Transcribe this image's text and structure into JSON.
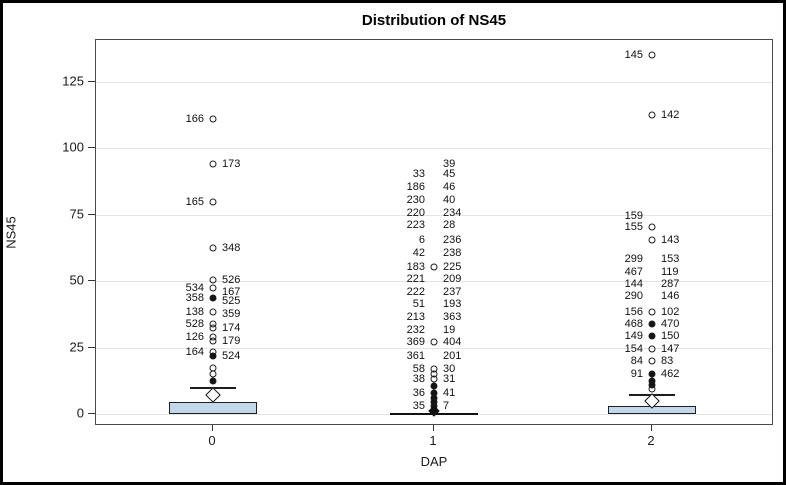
{
  "chart_data": {
    "type": "boxplot",
    "title": "Distribution of NS45",
    "xlabel": "DAP",
    "ylabel": "NS45",
    "ylim": [
      -3,
      142
    ],
    "grid": "horizontal",
    "y_ticks": [
      0,
      25,
      50,
      75,
      100,
      125
    ],
    "categories": [
      "0",
      "1",
      "2"
    ],
    "groups": [
      {
        "category": "0",
        "box": {
          "style": "box",
          "low": 0,
          "high": 4.5,
          "whisker_high": 10,
          "mean": 7
        },
        "points": [
          {
            "left": "166",
            "value": 111,
            "circle": true
          },
          {
            "right": "173",
            "value": 94,
            "circle": true
          },
          {
            "left": "165",
            "value": 80,
            "circle": true
          },
          {
            "right": "348",
            "value": 62.5,
            "circle": true
          },
          {
            "right": "526",
            "value": 50.5,
            "circle": true
          },
          {
            "left": "534",
            "value": 47.5,
            "circle": true
          },
          {
            "right": "167",
            "value": 46,
            "circle": false
          },
          {
            "left": "358",
            "value": 43.5,
            "circle": "filled"
          },
          {
            "right": "525",
            "value": 42.5,
            "circle": false
          },
          {
            "left": "138",
            "value": 38.5,
            "circle": true
          },
          {
            "right": "359",
            "value": 37.5,
            "circle": false
          },
          {
            "left": "528",
            "value": 34,
            "circle": true
          },
          {
            "right": "174",
            "value": 32.5,
            "circle": true
          },
          {
            "left": "126",
            "value": 29,
            "circle": true
          },
          {
            "right": "179",
            "value": 27.5,
            "circle": true
          },
          {
            "left": "164",
            "value": 23.5,
            "circle": true
          },
          {
            "right": "524",
            "value": 22,
            "circle": "filled"
          }
        ],
        "extra_circles": [
          {
            "value": 17.5,
            "filled": false
          },
          {
            "value": 15,
            "filled": false
          },
          {
            "value": 12.5,
            "filled": true
          }
        ]
      },
      {
        "category": "1",
        "box": {
          "style": "flat",
          "low": 0,
          "high": 0,
          "mean": 1.2
        },
        "points": [
          {
            "right": "39",
            "value": 94,
            "circle": false
          },
          {
            "left": "33",
            "right": "45",
            "value": 90.5,
            "circle": false
          },
          {
            "left": "186",
            "right": "46",
            "value": 85.5,
            "circle": false
          },
          {
            "left": "230",
            "right": "40",
            "value": 80.5,
            "circle": false
          },
          {
            "left": "220",
            "right": "234",
            "value": 75.5,
            "circle": false
          },
          {
            "left": "223",
            "right": "28",
            "value": 71,
            "circle": false
          },
          {
            "left": "6",
            "right": "236",
            "value": 65.5,
            "circle": false
          },
          {
            "left": "42",
            "right": "238",
            "value": 60.5,
            "circle": false
          },
          {
            "left": "183",
            "right": "225",
            "value": 55.5,
            "circle": true
          },
          {
            "left": "221",
            "right": "209",
            "value": 51,
            "circle": false
          },
          {
            "left": "222",
            "right": "237",
            "value": 46,
            "circle": false
          },
          {
            "left": "51",
            "right": "193",
            "value": 41.5,
            "circle": false
          },
          {
            "left": "213",
            "right": "363",
            "value": 36.5,
            "circle": false
          },
          {
            "left": "232",
            "right": "19",
            "value": 31.5,
            "circle": false
          },
          {
            "left": "369",
            "right": "404",
            "value": 27,
            "circle": true
          },
          {
            "left": "361",
            "right": "201",
            "value": 22,
            "circle": false
          },
          {
            "left": "58",
            "right": "30",
            "value": 17,
            "circle": true
          },
          {
            "left": "38",
            "right": "31",
            "value": 13,
            "circle": true
          },
          {
            "left": "36",
            "right": "41",
            "value": 8,
            "circle": "filled"
          },
          {
            "left": "35",
            "right": "7",
            "value": 3,
            "circle": "filled"
          }
        ],
        "extra_circles": [
          {
            "value": 15,
            "filled": false
          },
          {
            "value": 10.5,
            "filled": true
          },
          {
            "value": 6,
            "filled": true
          },
          {
            "value": 4.5,
            "filled": true
          },
          {
            "value": 1.5,
            "filled": true
          }
        ]
      },
      {
        "category": "2",
        "box": {
          "style": "box",
          "low": 0,
          "high": 3,
          "whisker_high": 7.5,
          "mean": 4.8
        },
        "points": [
          {
            "left": "145",
            "value": 135,
            "circle": true
          },
          {
            "right": "142",
            "value": 112.5,
            "circle": true
          },
          {
            "left": "159",
            "value": 74.5,
            "circle": false
          },
          {
            "left": "155",
            "value": 70.5,
            "circle": true
          },
          {
            "right": "143",
            "value": 65.5,
            "circle": true
          },
          {
            "left": "299",
            "right": "153",
            "value": 58.5,
            "circle": false
          },
          {
            "left": "467",
            "right": "119",
            "value": 53.5,
            "circle": false
          },
          {
            "left": "144",
            "right": "287",
            "value": 49,
            "circle": false
          },
          {
            "left": "290",
            "right": "146",
            "value": 44.5,
            "circle": false
          },
          {
            "left": "156",
            "right": "102",
            "value": 38.5,
            "circle": true
          },
          {
            "left": "468",
            "right": "470",
            "value": 34,
            "circle": "filled"
          },
          {
            "left": "149",
            "right": "150",
            "value": 29.5,
            "circle": "filled"
          },
          {
            "left": "154",
            "right": "147",
            "value": 24.5,
            "circle": true
          },
          {
            "left": "84",
            "right": "83",
            "value": 20,
            "circle": true
          },
          {
            "left": "91",
            "right": "462",
            "value": 15,
            "circle": "filled"
          }
        ],
        "extra_circles": [
          {
            "value": 12.5,
            "filled": true
          },
          {
            "value": 11,
            "filled": true
          },
          {
            "value": 9.5,
            "filled": false
          }
        ]
      }
    ]
  },
  "colors": {
    "box_fill": "#c3d7ea",
    "box_border": "#1f1f1f",
    "grid": "#e4e4e4",
    "frame_border": "#4a4a4a",
    "outer_border": "#000000",
    "marker": "#1d1d1d"
  }
}
